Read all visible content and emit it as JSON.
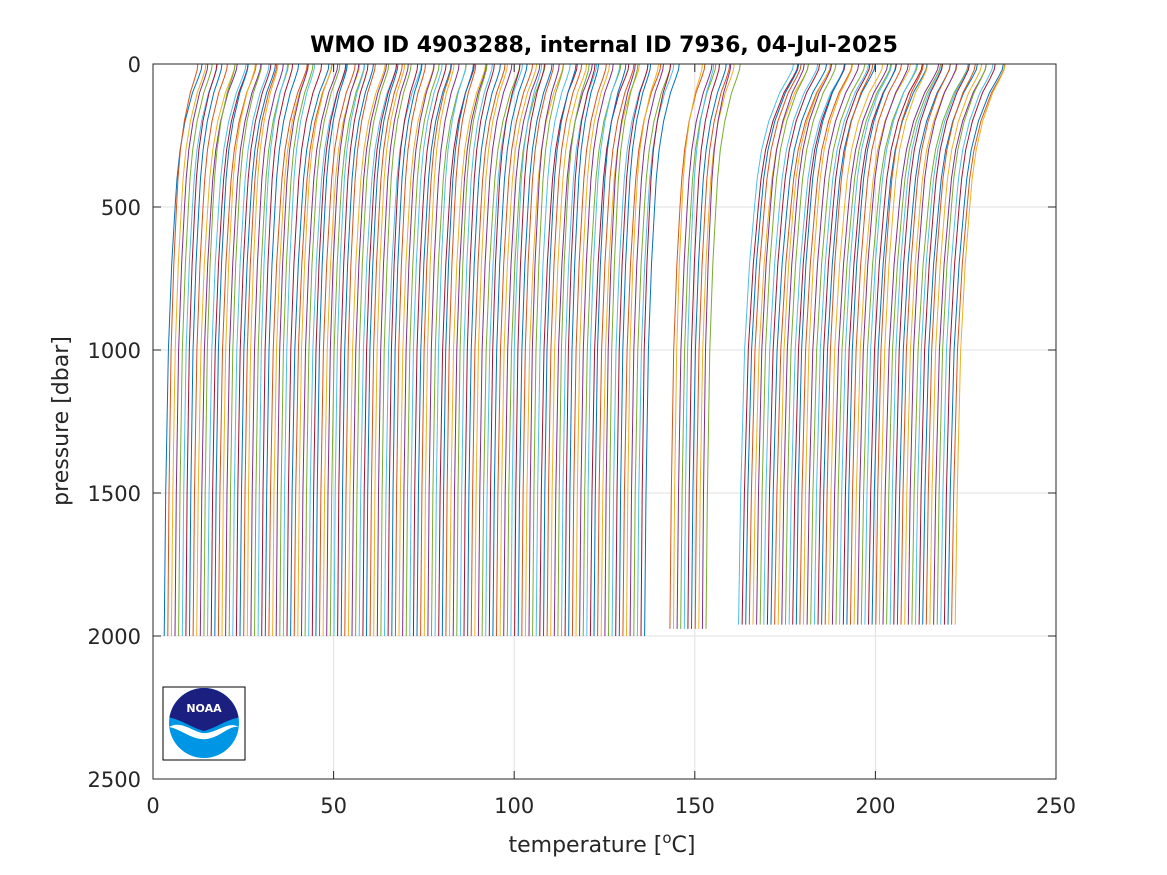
{
  "chart_data": {
    "type": "line",
    "title": "WMO ID 4903288, internal ID 7936, 04-Jul-2025",
    "xlabel": "temperature [",
    "xlabel_sup": "o",
    "xlabel_unit": "C]",
    "ylabel": "pressure [dbar]",
    "xlim": [
      0,
      250
    ],
    "ylim": [
      0,
      2500
    ],
    "y_reversed": true,
    "grid": true,
    "x_ticks": [
      0,
      50,
      100,
      150,
      200,
      250
    ],
    "y_ticks": [
      0,
      500,
      1000,
      1500,
      2000,
      2500
    ],
    "x_tick_labels": [
      "0",
      "50",
      "100",
      "150",
      "200",
      "250"
    ],
    "y_tick_labels": [
      "0",
      "500",
      "1000",
      "1500",
      "2000",
      "2500"
    ],
    "profile_offset_step": 1,
    "groups": [
      {
        "first_offset": 0,
        "count": 134,
        "max_pressure": 2000,
        "surface_temp": 12.5,
        "p500_temp": 5.6,
        "deep_temp": 3.1
      },
      {
        "first_offset": 140,
        "count": 11,
        "max_pressure": 1975,
        "surface_temp": 12.0,
        "p500_temp": 5.5,
        "deep_temp": 3.1
      },
      {
        "first_offset": 159,
        "count": 61,
        "max_pressure": 1960,
        "surface_temp": 17.5,
        "p500_temp": 6.0,
        "deep_temp": 3.1
      }
    ],
    "profile_shape": {
      "pressure": [
        0,
        20,
        50,
        100,
        200,
        300,
        400,
        500,
        700,
        1000,
        1500,
        2000
      ],
      "fraction_of_range": [
        1.0,
        0.98,
        0.9,
        0.75,
        0.55,
        0.42,
        0.34,
        0.29,
        0.2,
        0.11,
        0.04,
        0.0
      ]
    },
    "series_colors": [
      "#0072BD",
      "#D95319",
      "#EDB120",
      "#7E2F8E",
      "#77AC30",
      "#4DBEEE",
      "#A2142F"
    ]
  },
  "logo": {
    "text": "NOAA",
    "top_color": "#1a1f80",
    "bottom_color": "#0096e6"
  }
}
